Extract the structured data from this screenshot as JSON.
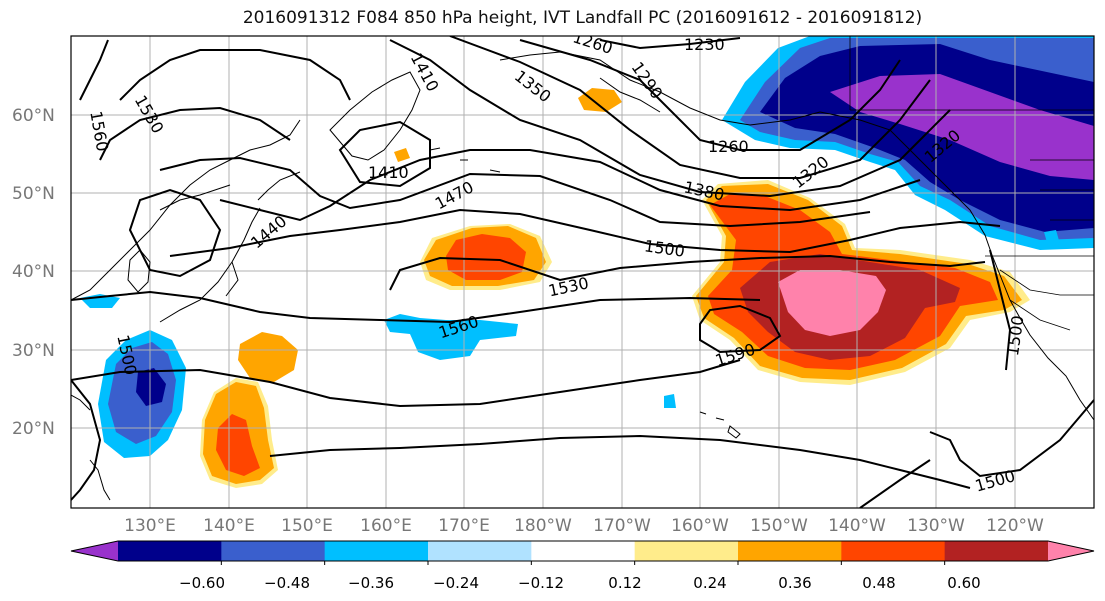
{
  "title": "2016091312 F084 850 hPa height, IVT Landfall PC (2016091612 - 2016091812)",
  "map": {
    "lat_labels": [
      "60°N",
      "50°N",
      "40°N",
      "30°N",
      "20°N"
    ],
    "lon_labels": [
      "130°E",
      "140°E",
      "150°E",
      "160°E",
      "170°E",
      "180°W",
      "170°W",
      "160°W",
      "150°W",
      "140°W",
      "130°W",
      "120°W"
    ],
    "contour_labels": [
      "1230",
      "1260",
      "1290",
      "1350",
      "1410",
      "1410",
      "1560",
      "1530",
      "1260",
      "1320",
      "1380",
      "1470",
      "1440",
      "1500",
      "1530",
      "1560",
      "1590",
      "1500",
      "1500",
      "1500",
      "1320"
    ]
  },
  "colorbar": {
    "ticks": [
      "−0.60",
      "−0.48",
      "−0.36",
      "−0.24",
      "−0.12",
      "0.12",
      "0.24",
      "0.36",
      "0.48",
      "0.60"
    ],
    "colors": [
      "#9932CC",
      "#00008B",
      "#3A5FCD",
      "#00BFFF",
      "#B0E2FF",
      "#FFFFFF",
      "#FFEC8B",
      "#FFA500",
      "#FF4500",
      "#B22222",
      "#FF82AB"
    ]
  }
}
